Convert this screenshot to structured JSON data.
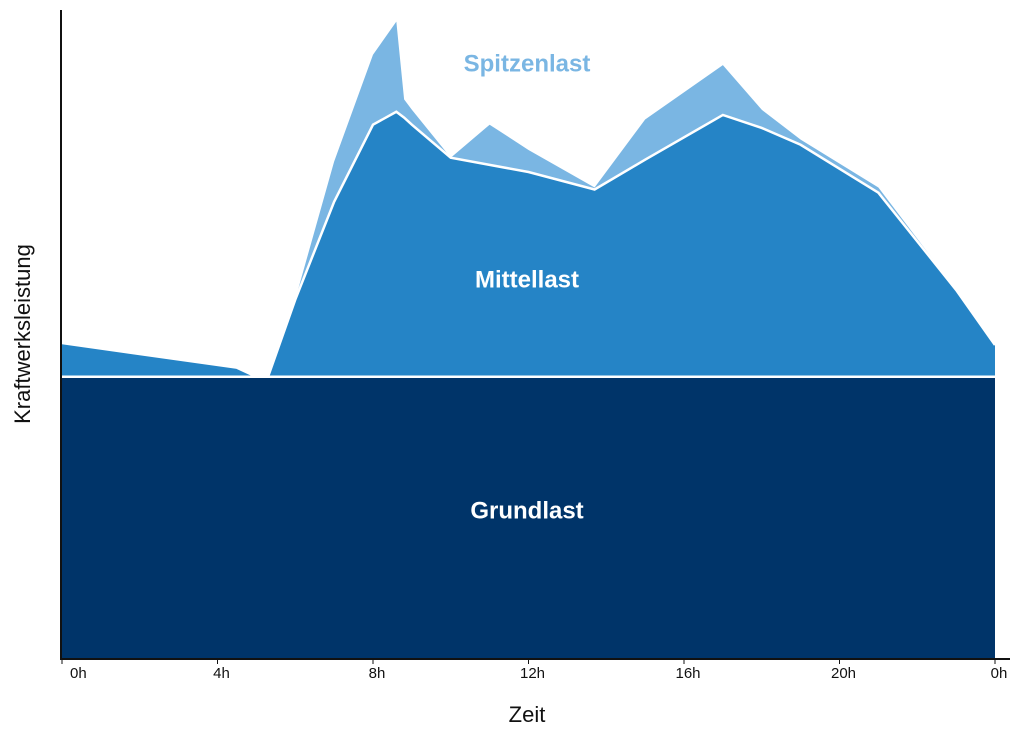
{
  "chart_data": {
    "type": "stacked_area",
    "x_label": "Zeit",
    "y_label": "Kraftwerksleistung",
    "x": [
      0,
      4.5,
      5,
      5.3,
      6,
      7,
      8,
      8.6,
      8.8,
      9,
      10,
      11,
      12,
      13.7,
      15,
      17,
      18,
      19,
      21,
      23,
      24
    ],
    "xlim": [
      0,
      24
    ],
    "xticks": [
      {
        "value": 0,
        "label": "0h"
      },
      {
        "value": 4,
        "label": "4h"
      },
      {
        "value": 8,
        "label": "8h"
      },
      {
        "value": 12,
        "label": "12h"
      },
      {
        "value": 16,
        "label": "16h"
      },
      {
        "value": 20,
        "label": "20h"
      },
      {
        "value": 24,
        "label": "0h"
      }
    ],
    "ylim": [
      0,
      100
    ],
    "series": [
      {
        "name": "Grundlast",
        "color": "#003469",
        "values": [
          43.4,
          43.4,
          43.4,
          43.4,
          43.4,
          43.4,
          43.4,
          43.4,
          43.4,
          43.4,
          43.4,
          43.4,
          43.4,
          43.4,
          43.4,
          43.4,
          43.4,
          43.4,
          43.4,
          43.4,
          43.4
        ]
      },
      {
        "name": "Mittellast",
        "color": "#2584c6",
        "values": [
          5.2,
          1.4,
          0,
          0,
          11.9,
          27,
          38.9,
          40.9,
          40,
          38.9,
          33.8,
          32.7,
          31.6,
          28.9,
          33.5,
          40.4,
          38.4,
          35.8,
          28.4,
          13.4,
          4.9
        ]
      },
      {
        "name": "Spitzenlast",
        "color": "#7ab6e3",
        "values": [
          0,
          0,
          0,
          0,
          0,
          6.2,
          10.8,
          13.9,
          2.8,
          2.3,
          0,
          6.2,
          3.4,
          0.3,
          6.2,
          7.7,
          2.8,
          0.8,
          0.8,
          0,
          0
        ]
      }
    ]
  }
}
